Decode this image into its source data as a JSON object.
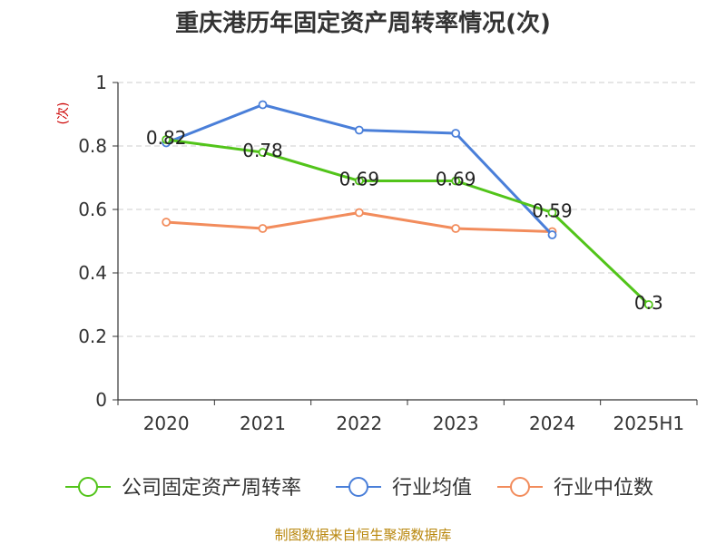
{
  "chart_data": {
    "type": "line",
    "title": "重庆港历年固定资产周转率情况(次)",
    "ylabel": "(次)",
    "categories": [
      "2020",
      "2021",
      "2022",
      "2023",
      "2024",
      "2025H1"
    ],
    "ylim": [
      0,
      1
    ],
    "yticks": [
      "0",
      "0.2",
      "0.4",
      "0.6",
      "0.8",
      "1"
    ],
    "grid": true,
    "legend_position": "bottom",
    "series": [
      {
        "name": "公司固定资产周转率",
        "color": "#52c41a",
        "values": [
          0.82,
          0.78,
          0.69,
          0.69,
          0.59,
          0.3
        ],
        "labels": [
          "0.82",
          "0.78",
          "0.69",
          "0.69",
          "0.59",
          "0.3"
        ]
      },
      {
        "name": "行业均值",
        "color": "#4a7fd9",
        "values": [
          0.81,
          0.93,
          0.85,
          0.84,
          0.52,
          null
        ]
      },
      {
        "name": "行业中位数",
        "color": "#f28c5c",
        "values": [
          0.56,
          0.54,
          0.59,
          0.54,
          0.53,
          null
        ]
      }
    ]
  },
  "source": "制图数据来自恒生聚源数据库"
}
